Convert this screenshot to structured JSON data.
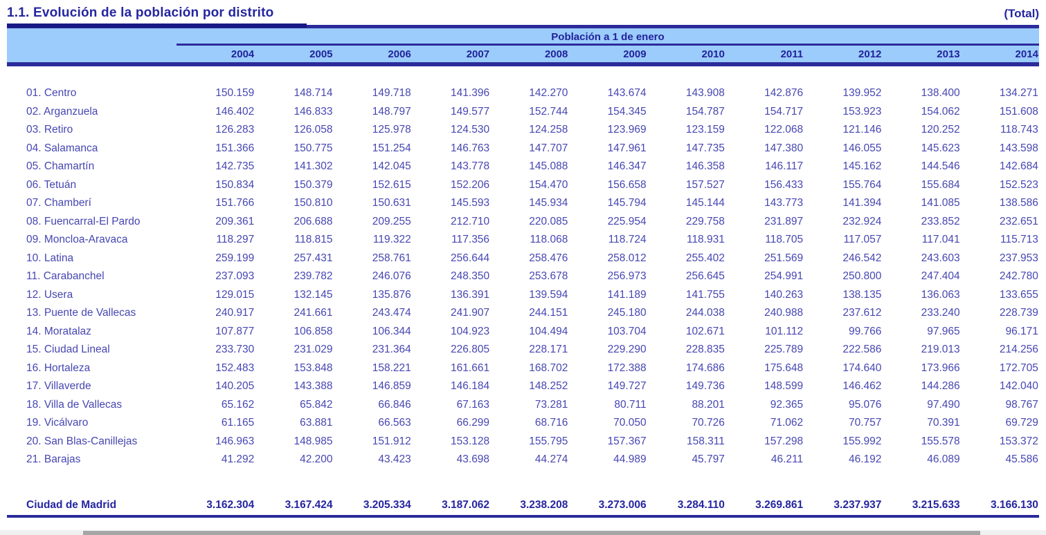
{
  "header": {
    "title": "1.1. Evolución de la población por distrito",
    "total_label": "(Total)",
    "band_title": "Población a 1 de enero",
    "years": [
      "2004",
      "2005",
      "2006",
      "2007",
      "2008",
      "2009",
      "2010",
      "2011",
      "2012",
      "2013",
      "2014"
    ]
  },
  "table": {
    "rows": [
      {
        "district": "01. Centro",
        "values": [
          "150.159",
          "148.714",
          "149.718",
          "141.396",
          "142.270",
          "143.674",
          "143.908",
          "142.876",
          "139.952",
          "138.400",
          "134.271"
        ]
      },
      {
        "district": "02. Arganzuela",
        "values": [
          "146.402",
          "146.833",
          "148.797",
          "149.577",
          "152.744",
          "154.345",
          "154.787",
          "154.717",
          "153.923",
          "154.062",
          "151.608"
        ]
      },
      {
        "district": "03. Retiro",
        "values": [
          "126.283",
          "126.058",
          "125.978",
          "124.530",
          "124.258",
          "123.969",
          "123.159",
          "122.068",
          "121.146",
          "120.252",
          "118.743"
        ]
      },
      {
        "district": "04. Salamanca",
        "values": [
          "151.366",
          "150.775",
          "151.254",
          "146.763",
          "147.707",
          "147.961",
          "147.735",
          "147.380",
          "146.055",
          "145.623",
          "143.598"
        ]
      },
      {
        "district": "05. Chamartín",
        "values": [
          "142.735",
          "141.302",
          "142.045",
          "143.778",
          "145.088",
          "146.347",
          "146.358",
          "146.117",
          "145.162",
          "144.546",
          "142.684"
        ]
      },
      {
        "district": "06. Tetuán",
        "values": [
          "150.834",
          "150.379",
          "152.615",
          "152.206",
          "154.470",
          "156.658",
          "157.527",
          "156.433",
          "155.764",
          "155.684",
          "152.523"
        ]
      },
      {
        "district": "07. Chamberí",
        "values": [
          "151.766",
          "150.810",
          "150.631",
          "145.593",
          "145.934",
          "145.794",
          "145.144",
          "143.773",
          "141.394",
          "141.085",
          "138.586"
        ]
      },
      {
        "district": "08. Fuencarral-El Pardo",
        "values": [
          "209.361",
          "206.688",
          "209.255",
          "212.710",
          "220.085",
          "225.954",
          "229.758",
          "231.897",
          "232.924",
          "233.852",
          "232.651"
        ]
      },
      {
        "district": "09. Moncloa-Aravaca",
        "values": [
          "118.297",
          "118.815",
          "119.322",
          "117.356",
          "118.068",
          "118.724",
          "118.931",
          "118.705",
          "117.057",
          "117.041",
          "115.713"
        ]
      },
      {
        "district": "10. Latina",
        "values": [
          "259.199",
          "257.431",
          "258.761",
          "256.644",
          "258.476",
          "258.012",
          "255.402",
          "251.569",
          "246.542",
          "243.603",
          "237.953"
        ]
      },
      {
        "district": "11. Carabanchel",
        "values": [
          "237.093",
          "239.782",
          "246.076",
          "248.350",
          "253.678",
          "256.973",
          "256.645",
          "254.991",
          "250.800",
          "247.404",
          "242.780"
        ]
      },
      {
        "district": "12. Usera",
        "values": [
          "129.015",
          "132.145",
          "135.876",
          "136.391",
          "139.594",
          "141.189",
          "141.755",
          "140.263",
          "138.135",
          "136.063",
          "133.655"
        ]
      },
      {
        "district": "13. Puente de Vallecas",
        "values": [
          "240.917",
          "241.661",
          "243.474",
          "241.907",
          "244.151",
          "245.180",
          "244.038",
          "240.988",
          "237.612",
          "233.240",
          "228.739"
        ]
      },
      {
        "district": "14. Moratalaz",
        "values": [
          "107.877",
          "106.858",
          "106.344",
          "104.923",
          "104.494",
          "103.704",
          "102.671",
          "101.112",
          "99.766",
          "97.965",
          "96.171"
        ]
      },
      {
        "district": "15. Ciudad Lineal",
        "values": [
          "233.730",
          "231.029",
          "231.364",
          "226.805",
          "228.171",
          "229.290",
          "228.835",
          "225.789",
          "222.586",
          "219.013",
          "214.256"
        ]
      },
      {
        "district": "16. Hortaleza",
        "values": [
          "152.483",
          "153.848",
          "158.221",
          "161.661",
          "168.702",
          "172.388",
          "174.686",
          "175.648",
          "174.640",
          "173.966",
          "172.705"
        ]
      },
      {
        "district": "17. Villaverde",
        "values": [
          "140.205",
          "143.388",
          "146.859",
          "146.184",
          "148.252",
          "149.727",
          "149.736",
          "148.599",
          "146.462",
          "144.286",
          "142.040"
        ]
      },
      {
        "district": "18. Villa de Vallecas",
        "values": [
          "65.162",
          "65.842",
          "66.846",
          "67.163",
          "73.281",
          "80.711",
          "88.201",
          "92.365",
          "95.076",
          "97.490",
          "98.767"
        ]
      },
      {
        "district": "19. Vicálvaro",
        "values": [
          "61.165",
          "63.881",
          "66.563",
          "66.299",
          "68.716",
          "70.050",
          "70.726",
          "71.062",
          "70.757",
          "70.391",
          "69.729"
        ]
      },
      {
        "district": "20. San Blas-Canillejas",
        "values": [
          "146.963",
          "148.985",
          "151.912",
          "153.128",
          "155.795",
          "157.367",
          "158.311",
          "157.298",
          "155.992",
          "155.578",
          "153.372"
        ]
      },
      {
        "district": "21. Barajas",
        "values": [
          "41.292",
          "42.200",
          "43.423",
          "43.698",
          "44.274",
          "44.989",
          "45.797",
          "46.211",
          "46.192",
          "46.089",
          "45.586"
        ]
      }
    ],
    "total": {
      "label": "Ciudad de Madrid",
      "values": [
        "3.162.304",
        "3.167.424",
        "3.205.334",
        "3.187.062",
        "3.238.208",
        "3.273.006",
        "3.284.110",
        "3.269.861",
        "3.237.937",
        "3.215.633",
        "3.166.130"
      ]
    }
  },
  "colors": {
    "navy_bar": "#2B2B9B",
    "navy_dark": "#191985",
    "header_text": "#22229A",
    "title_text": "#2525A0",
    "data_text": "#4646B2",
    "band_blue": "#9BCCFB",
    "scrollbar_track": "#F0F0F0",
    "scrollbar_thumb": "#A6A6A6"
  }
}
